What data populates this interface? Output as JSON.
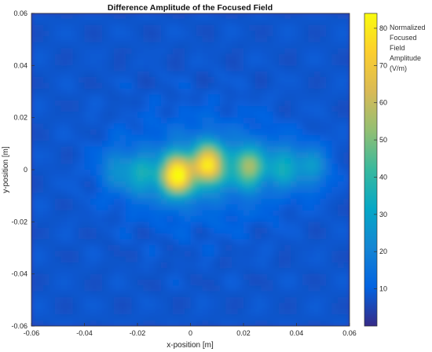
{
  "chart_data": {
    "type": "heatmap",
    "title": "Difference Amplitude of the Focused Field",
    "xlabel": "x-position [m]",
    "ylabel": "y-position [m]",
    "xlim": [
      -0.06,
      0.06
    ],
    "ylim": [
      -0.06,
      0.06
    ],
    "xticks": [
      "-0.06",
      "-0.04",
      "-0.02",
      "0",
      "0.02",
      "0.04",
      "0.06"
    ],
    "yticks": [
      "0.06",
      "0.04",
      "0.02",
      "0",
      "-0.02",
      "-0.04",
      "-0.06"
    ],
    "colormap": "parula",
    "clim": [
      0,
      84
    ],
    "colorbar_ticks": [
      "80",
      "70",
      "60",
      "50",
      "40",
      "30",
      "20",
      "10"
    ],
    "colorbar_ticks_values": [
      80,
      70,
      60,
      50,
      40,
      30,
      20,
      10
    ],
    "colorbar_label": [
      "Normalized",
      "Focused",
      "Field",
      "Amplitude",
      "(V/m)"
    ],
    "hotspots": [
      {
        "x": -0.005,
        "y": -0.002,
        "value": 82
      },
      {
        "x": 0.007,
        "y": 0.002,
        "value": 72
      },
      {
        "x": 0.022,
        "y": 0.001,
        "value": 50
      },
      {
        "x": 0.035,
        "y": 0.001,
        "value": 32
      },
      {
        "x": 0.046,
        "y": 0.001,
        "value": 26
      },
      {
        "x": -0.018,
        "y": -0.002,
        "value": 30
      },
      {
        "x": -0.028,
        "y": 0.0,
        "value": 22
      }
    ],
    "background_value": 8
  }
}
